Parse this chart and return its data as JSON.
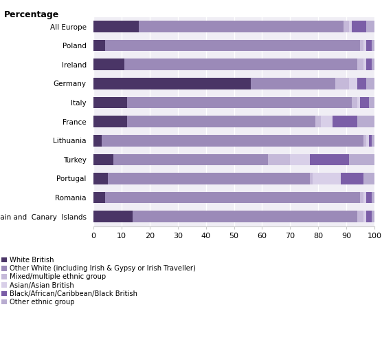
{
  "categories": [
    "All Europe",
    "Poland",
    "Ireland",
    "Germany",
    "Italy",
    "France",
    "Lithuania",
    "Turkey",
    "Portugal",
    "Romania",
    "Spain and  Canary  Islands"
  ],
  "colors": [
    "#4a3566",
    "#9b8ab8",
    "#c5b9d9",
    "#d8cfe8",
    "#7b5ea7",
    "#b8acd0"
  ],
  "data": [
    [
      16,
      73,
      2,
      1,
      5,
      3
    ],
    [
      4,
      91,
      1,
      1,
      2,
      1
    ],
    [
      11,
      83,
      2,
      1,
      2,
      1
    ],
    [
      56,
      30,
      5,
      3,
      3,
      3
    ],
    [
      12,
      80,
      2,
      1,
      3,
      2
    ],
    [
      12,
      67,
      2,
      4,
      9,
      6
    ],
    [
      3,
      93,
      1,
      1,
      1,
      1
    ],
    [
      7,
      55,
      8,
      7,
      14,
      9
    ],
    [
      5,
      72,
      1,
      10,
      8,
      4
    ],
    [
      4,
      91,
      1,
      1,
      2,
      1
    ],
    [
      14,
      80,
      2,
      1,
      2,
      1
    ]
  ],
  "xticks": [
    0,
    10,
    20,
    30,
    40,
    50,
    60,
    70,
    80,
    90,
    100
  ],
  "percentage_label": "Percentage",
  "legend_labels": [
    "White British",
    "Other White (including Irish & Gypsy or Irish Traveller)",
    "Mixed/multiple ethnic group",
    "Asian/Asian British",
    "Black/African/Caribbean/Black British",
    "Other ethnic group"
  ],
  "bar_facecolor": "#f0eef5",
  "fig_facecolor": "#ffffff",
  "grid_color": "#ffffff",
  "spine_color": "#cccccc"
}
